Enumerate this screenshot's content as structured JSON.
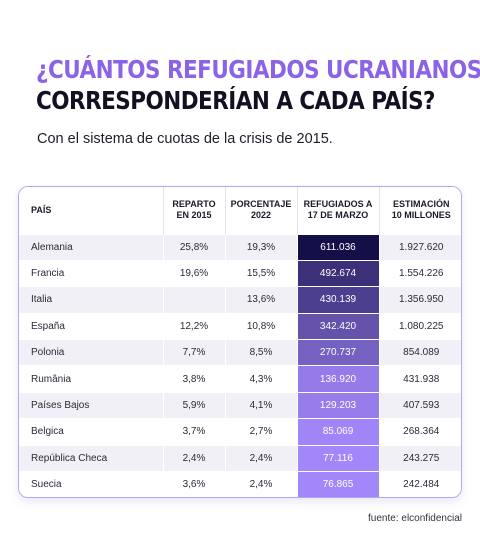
{
  "title_line1": "¿CUÁNTOS REFUGIADOS UCRANIANOS",
  "title_line2": "CORRESPONDERÍAN A CADA PAÍS?",
  "subtitle": "Con el sistema de cuotas de la crisis de 2015.",
  "source": "fuente: elconfidencial",
  "chart_data": {
    "type": "table",
    "columns": [
      {
        "line1": "PAÍS",
        "line2": ""
      },
      {
        "line1": "REPARTO",
        "line2": "EN 2015"
      },
      {
        "line1": "PORCENTAJE",
        "line2": "2022"
      },
      {
        "line1": "REFUGIADOS A",
        "line2": "17 DE MARZO"
      },
      {
        "line1": "ESTIMACIÓN",
        "line2": "10 MILLONES"
      }
    ],
    "rows": [
      {
        "pais": "Alemania",
        "reparto_2015": "25,8%",
        "porcentaje_2022": "19,3%",
        "refugiados": "611.036",
        "refugiados_value": 611036,
        "estimacion": "1.927.620"
      },
      {
        "pais": "Francia",
        "reparto_2015": "19,6%",
        "porcentaje_2022": "15,5%",
        "refugiados": "492.674",
        "refugiados_value": 492674,
        "estimacion": "1.554.226"
      },
      {
        "pais": "Italia",
        "reparto_2015": "",
        "porcentaje_2022": "13,6%",
        "refugiados": "430.139",
        "refugiados_value": 430139,
        "estimacion": "1.356.950"
      },
      {
        "pais": "España",
        "reparto_2015": "12,2%",
        "porcentaje_2022": "10,8%",
        "refugiados": "342.420",
        "refugiados_value": 342420,
        "estimacion": "1.080.225"
      },
      {
        "pais": "Polonia",
        "reparto_2015": "7,7%",
        "porcentaje_2022": "8,5%",
        "refugiados": "270.737",
        "refugiados_value": 270737,
        "estimacion": "854.089"
      },
      {
        "pais": "Rumânia",
        "reparto_2015": "3,8%",
        "porcentaje_2022": "4,3%",
        "refugiados": "136.920",
        "refugiados_value": 136920,
        "estimacion": "431.938"
      },
      {
        "pais": "Países Bajos",
        "reparto_2015": "5,9%",
        "porcentaje_2022": "4,1%",
        "refugiados": "129.203",
        "refugiados_value": 129203,
        "estimacion": "407.593"
      },
      {
        "pais": "Belgica",
        "reparto_2015": "3,7%",
        "porcentaje_2022": "2,7%",
        "refugiados": "85.069",
        "refugiados_value": 85069,
        "estimacion": "268.364"
      },
      {
        "pais": "República Checa",
        "reparto_2015": "2,4%",
        "porcentaje_2022": "2,4%",
        "refugiados": "77.116",
        "refugiados_value": 77116,
        "estimacion": "243.275"
      },
      {
        "pais": "Suecia",
        "reparto_2015": "3,6%",
        "porcentaje_2022": "2,4%",
        "refugiados": "76.865",
        "refugiados_value": 76865,
        "estimacion": "242.484"
      }
    ]
  },
  "colors": {
    "accent_title": "#8a63e6",
    "heat_dark": "#150f48",
    "heat_light": "#a287fa"
  }
}
